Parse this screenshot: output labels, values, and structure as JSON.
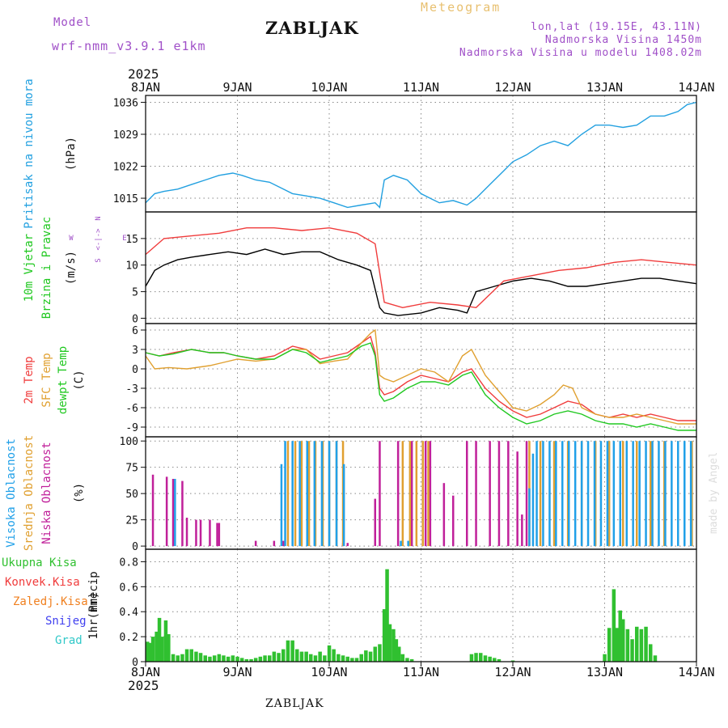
{
  "header": {
    "model_label": "Model",
    "model_name": "wrf-nmm_v3.9.1 e1km",
    "station": "ZABLJAK",
    "meteogram": "Meteogram",
    "lonlat": "lon,lat (19.15E, 43.11N)",
    "elevation": "Nadmorska Visina 1450m",
    "model_elevation": "Nadmorska Visina u modelu 1408.02m",
    "year_top": "2025",
    "year_bottom": "2025",
    "footer": "ZABLJAK",
    "credit": "made by Angel"
  },
  "colors": {
    "pressure": "#22a0e0",
    "temp2m": "#f03c3c",
    "sfc": "#e0a030",
    "dew": "#20c820",
    "low_cloud": "#c0209a",
    "mid_cloud": "#e0a030",
    "high_cloud": "#20a0e8",
    "precip": "#30c030",
    "conv_precip": "#f03c3c",
    "snow": "#4040f0",
    "wind_speed": "#000000",
    "wind_gust": "#f03c3c"
  },
  "chart_data": [
    {
      "type": "line",
      "name": "pressure",
      "x_ticks": [
        "8JAN",
        "9JAN",
        "10JAN",
        "11JAN",
        "12JAN",
        "13JAN",
        "14JAN"
      ],
      "x_range_days": [
        0,
        6
      ],
      "ylabel_lines": [
        "Pritisak na nivou mora",
        "(hPa)"
      ],
      "ylim": [
        1012,
        1037.5
      ],
      "yticks": [
        1015,
        1022,
        1029,
        1036
      ],
      "grid": true,
      "series": [
        {
          "key": "pressure",
          "x": [
            0,
            0.1,
            0.2,
            0.35,
            0.5,
            0.65,
            0.8,
            0.95,
            1.05,
            1.2,
            1.35,
            1.5,
            1.6,
            1.75,
            1.9,
            2.05,
            2.2,
            2.35,
            2.5,
            2.55,
            2.6,
            2.7,
            2.85,
            3.0,
            3.1,
            3.2,
            3.35,
            3.5,
            3.6,
            3.75,
            3.9,
            4.0,
            4.15,
            4.3,
            4.45,
            4.6,
            4.75,
            4.9,
            5.05,
            5.2,
            5.35,
            5.5,
            5.65,
            5.8,
            5.9,
            6.0
          ],
          "y": [
            1014,
            1016,
            1016.5,
            1017,
            1018,
            1019,
            1020,
            1020.5,
            1020,
            1019,
            1018.5,
            1017,
            1016,
            1015.5,
            1015,
            1014,
            1013,
            1013.5,
            1014,
            1013,
            1019,
            1020,
            1019,
            1016,
            1015,
            1014,
            1014.5,
            1013.5,
            1015,
            1018,
            1021,
            1023,
            1024.5,
            1026.5,
            1027.5,
            1026.5,
            1029,
            1031,
            1031,
            1030.5,
            1031,
            1033,
            1033,
            1034,
            1035.5,
            1036
          ]
        }
      ]
    },
    {
      "type": "line",
      "name": "wind",
      "ylabel_lines": [
        "10m Vjetar",
        "Brzina i Pravac",
        "(m/s)"
      ],
      "direction_legend": [
        "N",
        "W",
        "E",
        "S"
      ],
      "ylim": [
        -1,
        20
      ],
      "yticks": [
        0,
        5,
        10,
        15
      ],
      "grid": true,
      "series": [
        {
          "key": "wind_speed",
          "x": [
            0,
            0.1,
            0.2,
            0.35,
            0.5,
            0.7,
            0.9,
            1.1,
            1.3,
            1.5,
            1.7,
            1.9,
            2.1,
            2.3,
            2.45,
            2.55,
            2.6,
            2.75,
            3.0,
            3.2,
            3.4,
            3.5,
            3.6,
            3.8,
            4.0,
            4.2,
            4.4,
            4.6,
            4.8,
            5.0,
            5.2,
            5.4,
            5.6,
            5.8,
            6.0
          ],
          "y": [
            6,
            9,
            10,
            11,
            11.5,
            12,
            12.5,
            12,
            13,
            12,
            12.5,
            12.5,
            11,
            10,
            9,
            2,
            1,
            0.5,
            1,
            2,
            1.5,
            1,
            5,
            6,
            7,
            7.5,
            7,
            6,
            6,
            6.5,
            7,
            7.5,
            7.5,
            7,
            6.5
          ]
        },
        {
          "key": "wind_gust",
          "x": [
            0,
            0.2,
            0.5,
            0.8,
            1.1,
            1.4,
            1.7,
            2.0,
            2.3,
            2.5,
            2.6,
            2.8,
            3.1,
            3.4,
            3.6,
            3.9,
            4.2,
            4.5,
            4.8,
            5.1,
            5.4,
            5.7,
            6.0
          ],
          "y": [
            12,
            15,
            15.5,
            16,
            17,
            17,
            16.5,
            17,
            16,
            14,
            3,
            2,
            3,
            2.5,
            2,
            7,
            8,
            9,
            9.5,
            10.5,
            11,
            10.5,
            10
          ]
        }
      ]
    },
    {
      "type": "line",
      "name": "temperature",
      "ylabel_lines": [
        "2m Temp",
        "SFC Temp",
        "dewpt Temp",
        "(C)"
      ],
      "ylim": [
        -10.5,
        7
      ],
      "yticks": [
        -9,
        -6,
        -3,
        0,
        3,
        6
      ],
      "grid": true,
      "series": [
        {
          "key": "temp2m",
          "x": [
            0,
            0.15,
            0.3,
            0.5,
            0.7,
            0.85,
            1.0,
            1.2,
            1.4,
            1.6,
            1.75,
            1.9,
            2.05,
            2.2,
            2.35,
            2.45,
            2.5,
            2.55,
            2.6,
            2.7,
            2.85,
            3.0,
            3.15,
            3.3,
            3.45,
            3.55,
            3.7,
            3.85,
            4.0,
            4.15,
            4.3,
            4.45,
            4.6,
            4.75,
            4.9,
            5.05,
            5.2,
            5.35,
            5.5,
            5.65,
            5.8,
            6.0
          ],
          "y": [
            2.5,
            2,
            2.5,
            3,
            2.5,
            2.5,
            2,
            1.5,
            2,
            3.5,
            3,
            1.5,
            2,
            2.5,
            4,
            5,
            2.5,
            -3,
            -4,
            -3.5,
            -2,
            -1,
            -1.5,
            -2,
            -0.5,
            0,
            -3,
            -5,
            -6.5,
            -7.5,
            -7,
            -6,
            -5,
            -5.5,
            -7,
            -7.5,
            -7,
            -7.5,
            -7,
            -7.5,
            -8,
            -8
          ]
        },
        {
          "key": "sfc",
          "x": [
            0,
            0.1,
            0.25,
            0.45,
            0.7,
            0.85,
            1.0,
            1.2,
            1.4,
            1.6,
            1.75,
            1.9,
            2.05,
            2.2,
            2.35,
            2.45,
            2.5,
            2.55,
            2.6,
            2.7,
            2.85,
            3.0,
            3.15,
            3.3,
            3.45,
            3.55,
            3.7,
            3.85,
            4.0,
            4.15,
            4.3,
            4.45,
            4.55,
            4.65,
            4.75,
            4.9,
            5.05,
            5.2,
            5.35,
            5.5,
            5.65,
            5.8,
            6.0
          ],
          "y": [
            2,
            0,
            0.2,
            0,
            0.5,
            1,
            1.5,
            1.2,
            1.5,
            3,
            3,
            0.8,
            1.2,
            1.5,
            4,
            5.5,
            6,
            -1,
            -1.5,
            -2,
            -1,
            0,
            -0.5,
            -2,
            2,
            3,
            -1,
            -3.5,
            -6,
            -6.5,
            -5.5,
            -4,
            -2.5,
            -3,
            -6,
            -7,
            -7.5,
            -7.5,
            -7,
            -7.5,
            -8,
            -8.5,
            -8.5
          ]
        },
        {
          "key": "dew",
          "x": [
            0,
            0.15,
            0.3,
            0.5,
            0.7,
            0.85,
            1.0,
            1.2,
            1.4,
            1.6,
            1.75,
            1.9,
            2.05,
            2.2,
            2.35,
            2.45,
            2.5,
            2.55,
            2.6,
            2.7,
            2.85,
            3.0,
            3.15,
            3.3,
            3.45,
            3.55,
            3.7,
            3.85,
            4.0,
            4.15,
            4.3,
            4.45,
            4.6,
            4.75,
            4.9,
            5.05,
            5.2,
            5.35,
            5.5,
            5.65,
            5.8,
            6.0
          ],
          "y": [
            2.5,
            2,
            2.3,
            3,
            2.5,
            2.5,
            2,
            1.5,
            1.5,
            3,
            2.5,
            1,
            1.5,
            2,
            3.5,
            4,
            2,
            -4,
            -5,
            -4.5,
            -3,
            -2,
            -2,
            -2.5,
            -1,
            -0.5,
            -4,
            -6,
            -7.5,
            -8.5,
            -8,
            -7,
            -6.5,
            -7,
            -8,
            -8.5,
            -8.5,
            -9,
            -8.5,
            -9,
            -9.5,
            -9.5
          ]
        }
      ]
    },
    {
      "type": "bar",
      "name": "cloud_cover",
      "ylabel_lines": [
        "Visoka Oblacnost",
        "Srednja Oblacnost",
        "Niska Oblacnost",
        "(%)"
      ],
      "ylim": [
        -3,
        104
      ],
      "yticks": [
        0,
        25,
        50,
        75,
        100
      ],
      "grid": true,
      "series": [
        {
          "key": "low_cloud",
          "x": [
            0.08,
            0.23,
            0.3,
            0.4,
            0.45,
            0.55,
            0.6,
            0.7,
            0.78,
            0.8,
            1.2,
            1.4,
            1.5,
            2.15,
            2.2,
            2.5,
            2.55,
            2.75,
            2.9,
            3.05,
            3.1,
            3.25,
            3.35,
            3.5,
            3.6,
            3.75,
            3.85,
            3.95,
            4.05,
            4.1,
            4.15
          ],
          "y": [
            68,
            66,
            64,
            62,
            27,
            25,
            25,
            25,
            22,
            22,
            5,
            5,
            5,
            3,
            3,
            45,
            100,
            100,
            100,
            100,
            100,
            60,
            48,
            100,
            100,
            100,
            100,
            100,
            90,
            30,
            100
          ]
        },
        {
          "key": "mid_cloud",
          "x": [
            1.55,
            1.63,
            1.7,
            1.78,
            1.85,
            1.93,
            2.0,
            2.08,
            2.15,
            2.8,
            2.88,
            2.95,
            3.02,
            3.08,
            4.18,
            4.3,
            4.45,
            4.6,
            4.75,
            4.9,
            5.05,
            5.2,
            5.35,
            5.5,
            5.65,
            5.8,
            5.95
          ],
          "y": [
            100,
            100,
            100,
            100,
            100,
            100,
            100,
            100,
            100,
            100,
            100,
            100,
            100,
            100,
            100,
            100,
            100,
            100,
            100,
            100,
            100,
            100,
            100,
            100,
            100,
            100,
            100
          ]
        },
        {
          "key": "high_cloud",
          "x": [
            0.32,
            1.48,
            1.52,
            1.6,
            1.68,
            1.76,
            1.84,
            1.92,
            2.0,
            2.08,
            2.16,
            2.78,
            2.86,
            4.18,
            4.22,
            4.26,
            4.33,
            4.4,
            4.47,
            4.54,
            4.61,
            4.68,
            4.75,
            4.82,
            4.89,
            4.96,
            5.03,
            5.1,
            5.17,
            5.24,
            5.31,
            5.38,
            5.45,
            5.52,
            5.59,
            5.66,
            5.73,
            5.8,
            5.87,
            5.94
          ],
          "y": [
            64,
            78,
            100,
            100,
            100,
            100,
            100,
            100,
            100,
            100,
            78,
            5,
            5,
            55,
            88,
            100,
            100,
            100,
            100,
            100,
            100,
            100,
            100,
            100,
            100,
            100,
            100,
            100,
            100,
            100,
            100,
            100,
            100,
            100,
            100,
            100,
            100,
            100,
            100,
            100
          ]
        }
      ]
    },
    {
      "type": "bar",
      "name": "precip",
      "ylabel_lines": [
        "1hr Precip",
        "(mm)"
      ],
      "legend": [
        "Ukupna Kisa",
        "Konvek.Kisa",
        "Zaledj.Kisa",
        "Snijeg",
        "Grad"
      ],
      "legend_colors": [
        "#30c030",
        "#f03c3c",
        "#f08020",
        "#4040f0",
        "#30c8c8"
      ],
      "ylim": [
        0,
        0.9
      ],
      "yticks": [
        0,
        0.2,
        0.4,
        0.6,
        0.8
      ],
      "grid": true,
      "series": [
        {
          "key": "precip",
          "x": [
            0.02,
            0.05,
            0.08,
            0.12,
            0.15,
            0.18,
            0.22,
            0.25,
            0.3,
            0.35,
            0.4,
            0.45,
            0.5,
            0.55,
            0.6,
            0.65,
            0.7,
            0.75,
            0.8,
            0.85,
            0.9,
            0.95,
            1.0,
            1.05,
            1.1,
            1.15,
            1.2,
            1.25,
            1.3,
            1.35,
            1.4,
            1.45,
            1.5,
            1.55,
            1.6,
            1.65,
            1.7,
            1.75,
            1.8,
            1.85,
            1.9,
            1.95,
            2.0,
            2.05,
            2.1,
            2.15,
            2.2,
            2.25,
            2.3,
            2.35,
            2.4,
            2.45,
            2.5,
            2.55,
            2.6,
            2.63,
            2.66,
            2.7,
            2.73,
            2.76,
            2.8,
            2.85,
            2.9,
            3.55,
            3.6,
            3.65,
            3.7,
            3.75,
            3.8,
            3.85,
            4.0,
            5.0,
            5.05,
            5.1,
            5.13,
            5.17,
            5.2,
            5.25,
            5.3,
            5.35,
            5.4,
            5.45,
            5.5,
            5.55
          ],
          "y": [
            0.16,
            0.15,
            0.2,
            0.24,
            0.35,
            0.2,
            0.33,
            0.22,
            0.06,
            0.05,
            0.06,
            0.1,
            0.1,
            0.08,
            0.07,
            0.05,
            0.04,
            0.05,
            0.06,
            0.05,
            0.04,
            0.05,
            0.04,
            0.03,
            0.02,
            0.02,
            0.03,
            0.04,
            0.05,
            0.05,
            0.08,
            0.07,
            0.1,
            0.17,
            0.17,
            0.1,
            0.08,
            0.08,
            0.06,
            0.05,
            0.08,
            0.05,
            0.13,
            0.1,
            0.06,
            0.05,
            0.04,
            0.03,
            0.03,
            0.06,
            0.09,
            0.08,
            0.12,
            0.14,
            0.42,
            0.74,
            0.3,
            0.26,
            0.18,
            0.12,
            0.06,
            0.03,
            0.02,
            0.06,
            0.07,
            0.07,
            0.05,
            0.04,
            0.03,
            0.02,
            0.01,
            0.06,
            0.27,
            0.58,
            0.27,
            0.41,
            0.34,
            0.26,
            0.18,
            0.28,
            0.26,
            0.28,
            0.14,
            0.05
          ]
        }
      ]
    }
  ]
}
